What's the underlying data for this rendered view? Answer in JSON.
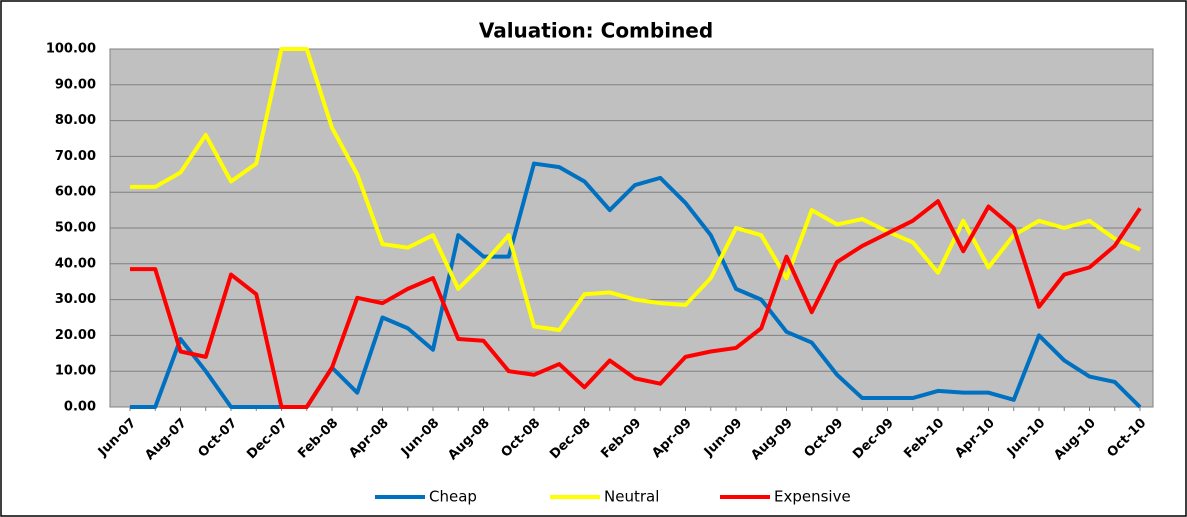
{
  "chart_data": {
    "type": "line",
    "title": "Valuation: Combined",
    "categories": [
      "Jun-07",
      null,
      "Aug-07",
      null,
      "Oct-07",
      null,
      "Dec-07",
      null,
      "Feb-08",
      null,
      "Apr-08",
      null,
      "Jun-08",
      null,
      "Aug-08",
      null,
      "Oct-08",
      null,
      "Dec-08",
      null,
      "Feb-09",
      null,
      "Apr-09",
      null,
      "Jun-09",
      null,
      "Aug-09",
      null,
      "Oct-09",
      null,
      "Dec-09",
      null,
      "Feb-10",
      null,
      "Apr-10",
      null,
      "Jun-10",
      null,
      "Aug-10",
      null,
      "Oct-10"
    ],
    "series": [
      {
        "name": "Cheap",
        "color": "#0070c0",
        "values": [
          0,
          0,
          19,
          10,
          0,
          0,
          0,
          0,
          11,
          4,
          25,
          22,
          16,
          48,
          42,
          42,
          68,
          67,
          63,
          55,
          62,
          64,
          57,
          48,
          33,
          30,
          21,
          18,
          9,
          2.5,
          2.5,
          2.5,
          4.5,
          4,
          4,
          2,
          20,
          13,
          8.5,
          7,
          0
        ]
      },
      {
        "name": "Neutral",
        "color": "#ffff00",
        "values": [
          61.5,
          61.5,
          65.5,
          76,
          63,
          68,
          100,
          100,
          78,
          65,
          45.5,
          44.5,
          48,
          33,
          40,
          48,
          22.5,
          21.5,
          31.5,
          32,
          30,
          29,
          28.5,
          36,
          50,
          48,
          36,
          55,
          51,
          52.5,
          49,
          46,
          37.5,
          52,
          39,
          48,
          52,
          50,
          52,
          47,
          44
        ]
      },
      {
        "name": "Expensive",
        "color": "#ff0000",
        "values": [
          38.5,
          38.5,
          15.5,
          14,
          37,
          31.5,
          0,
          0,
          11,
          30.5,
          29,
          33,
          36,
          19,
          18.5,
          10,
          9,
          12,
          5.5,
          13,
          8,
          6.5,
          14,
          15.5,
          16.5,
          22,
          42,
          26.5,
          40.5,
          45,
          48.5,
          52,
          57.5,
          43.5,
          56,
          50,
          28,
          37,
          39,
          45,
          55.5
        ]
      }
    ],
    "ylim": [
      0,
      100
    ],
    "yticks": [
      {
        "value": 0,
        "label": "0.00"
      },
      {
        "value": 10,
        "label": "10.00"
      },
      {
        "value": 20,
        "label": "20.00"
      },
      {
        "value": 30,
        "label": "30.00"
      },
      {
        "value": 40,
        "label": "40.00"
      },
      {
        "value": 50,
        "label": "50.00"
      },
      {
        "value": 60,
        "label": "60.00"
      },
      {
        "value": 70,
        "label": "70.00"
      },
      {
        "value": 80,
        "label": "80.00"
      },
      {
        "value": 90,
        "label": "90.00"
      },
      {
        "value": 100,
        "label": "100.00"
      }
    ],
    "grid": true,
    "plot_background": "#c0c0c0",
    "legend": "bottom"
  }
}
